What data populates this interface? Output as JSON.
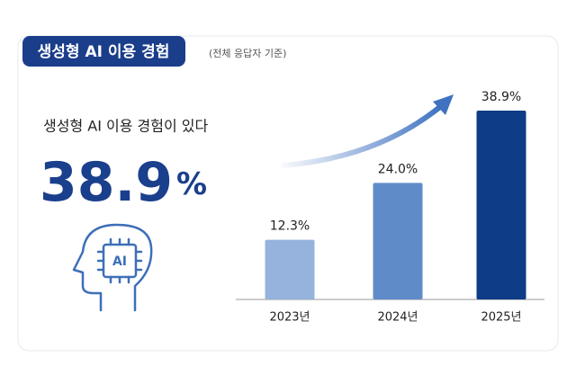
{
  "header": {
    "title": "생성형 AI 이용 경험",
    "subtitle": "(전체 응답자 기준)"
  },
  "highlight": {
    "text": "생성형 AI 이용 경험이 있다",
    "value": "38.9",
    "unit": "%",
    "icon_label": "AI"
  },
  "chart_data": {
    "type": "bar",
    "categories": [
      "2023년",
      "2024년",
      "2025년"
    ],
    "values": [
      12.3,
      24.0,
      38.9
    ],
    "value_labels": [
      "12.3%",
      "24.0%",
      "38.9%"
    ],
    "colors": [
      "#95b3dc",
      "#5f8cc9",
      "#0f3c87"
    ]
  }
}
